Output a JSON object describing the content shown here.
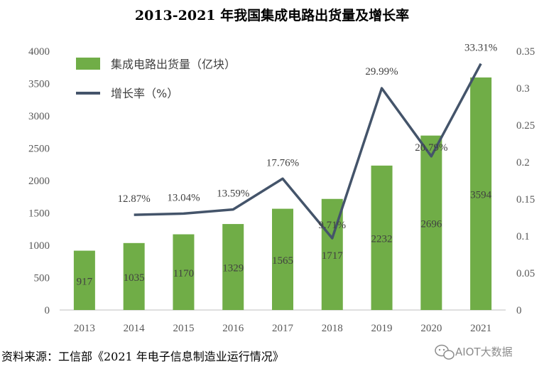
{
  "chart_data": {
    "type": "bar+line",
    "title": "2013-2021 年我国集成电路出货量及增长率",
    "categories": [
      "2013",
      "2014",
      "2015",
      "2016",
      "2017",
      "2018",
      "2019",
      "2020",
      "2021"
    ],
    "series": [
      {
        "name": "集成电路出货量（亿块）",
        "type": "bar",
        "axis": "left",
        "values": [
          917,
          1035,
          1170,
          1329,
          1565,
          1717,
          2232,
          2696,
          3594
        ],
        "labels": [
          "917",
          "1035",
          "1170",
          "1329",
          "1565",
          "1717",
          "2232",
          "2696",
          "3594"
        ]
      },
      {
        "name": "增长率（%）",
        "type": "line",
        "axis": "right",
        "values": [
          null,
          0.1287,
          0.1304,
          0.1359,
          0.1776,
          0.0971,
          0.2999,
          0.2079,
          0.3331
        ],
        "labels": [
          "",
          "12.87%",
          "13.04%",
          "13.59%",
          "17.76%",
          "9.71%",
          "29.99%",
          "20.79%",
          "33.31%"
        ]
      }
    ],
    "y_left": {
      "min": 0,
      "max": 4000,
      "ticks": [
        0,
        500,
        1000,
        1500,
        2000,
        2500,
        3000,
        3500,
        4000
      ],
      "tick_labels": [
        "0",
        "500",
        "1000",
        "1500",
        "2000",
        "2500",
        "3000",
        "3500",
        "4000"
      ]
    },
    "y_right": {
      "min": 0,
      "max": 0.35,
      "ticks": [
        0,
        0.05,
        0.1,
        0.15,
        0.2,
        0.25,
        0.3,
        0.35
      ],
      "tick_labels": [
        "0",
        "0.05",
        "0.1",
        "0.15",
        "0.2",
        "0.25",
        "0.3",
        "0.35"
      ]
    },
    "legend_position": "top-left",
    "colors": {
      "bar": "#70ad47",
      "line": "#44546a",
      "axis": "#bfbfbf"
    }
  },
  "footer": {
    "source": "资料来源：工信部《2021 年电子信息制造业运行情况》",
    "watermark": "AIOT大数据",
    "watermark_icon": "wechat-icon"
  }
}
